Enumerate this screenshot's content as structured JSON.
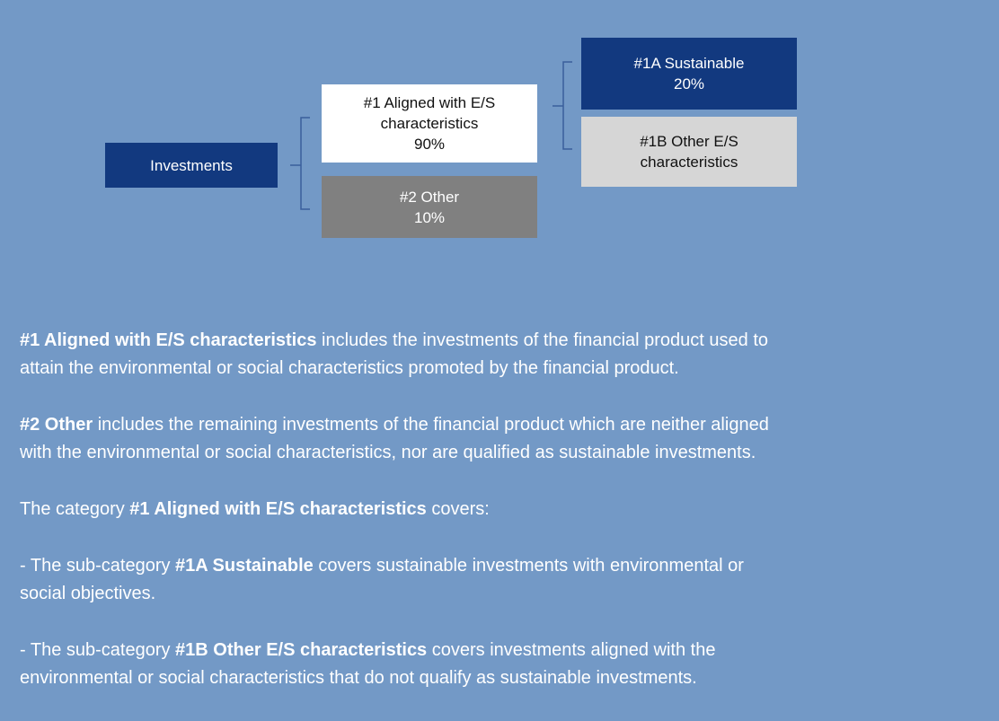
{
  "nodes": [
    {
      "lines": [
        "Investments"
      ]
    },
    {
      "lines": [
        "#1 Aligned with E/S",
        "characteristics",
        "90%"
      ]
    },
    {
      "lines": [
        "#2 Other",
        "10%"
      ]
    },
    {
      "lines": [
        "#1A Sustainable",
        "20%"
      ]
    },
    {
      "lines": [
        "#1B Other E/S",
        "characteristics"
      ]
    }
  ],
  "paragraphs": [
    [
      [
        {
          "text": "#1 Aligned with E/S characteristics",
          "bold": true
        },
        {
          "text": " includes the investments of the financial product used to",
          "bold": false
        }
      ],
      [
        {
          "text": "attain the environmental or social characteristics promoted by the financial product.",
          "bold": false
        }
      ]
    ],
    [
      [
        {
          "text": "#2 Other",
          "bold": true
        },
        {
          "text": " includes the remaining investments of the financial product which are neither aligned",
          "bold": false
        }
      ],
      [
        {
          "text": "with the environmental or social characteristics, nor are qualified as sustainable investments.",
          "bold": false
        }
      ]
    ],
    [
      [
        {
          "text": "The category ",
          "bold": false
        },
        {
          "text": "#1 Aligned with E/S characteristics",
          "bold": true
        },
        {
          "text": " covers:",
          "bold": false
        }
      ]
    ],
    [
      [
        {
          "text": "- The sub-category ",
          "bold": false
        },
        {
          "text": "#1A Sustainable",
          "bold": true
        },
        {
          "text": " covers sustainable investments with environmental or",
          "bold": false
        }
      ],
      [
        {
          "text": "social objectives.",
          "bold": false
        }
      ]
    ],
    [
      [
        {
          "text": "- The sub-category ",
          "bold": false
        },
        {
          "text": "#1B Other E/S characteristics",
          "bold": true
        },
        {
          "text": " covers investments aligned with the",
          "bold": false
        }
      ],
      [
        {
          "text": "environmental or social characteristics that do not qualify as sustainable investments.",
          "bold": false
        }
      ]
    ]
  ]
}
